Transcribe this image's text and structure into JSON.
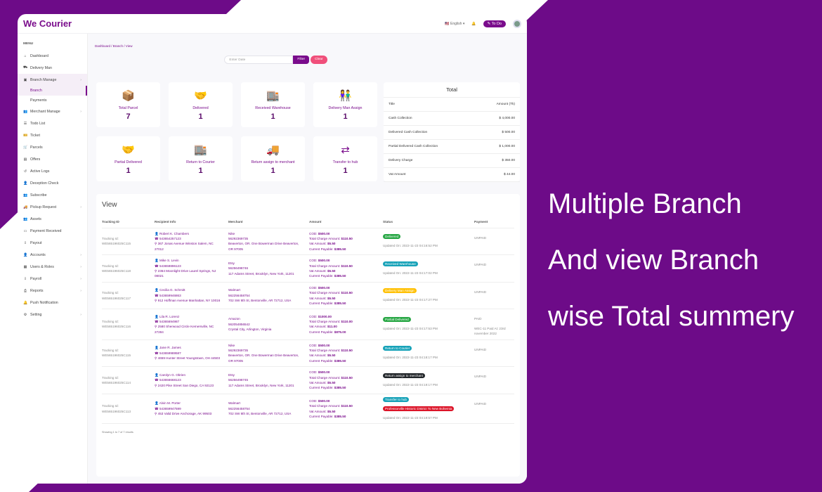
{
  "brand": {
    "name": "We Courier",
    "primary": "#7a0c8c",
    "background": "#6d0b88"
  },
  "header": {
    "language": "English",
    "todo_label": "To Do"
  },
  "sidebar": {
    "menu_label": "MENU",
    "items": [
      {
        "label": "Dashboard",
        "icon": "home-icon"
      },
      {
        "label": "Delivery Man",
        "icon": "motorcycle-icon"
      },
      {
        "label": "Branch Manage",
        "icon": "briefcase-icon",
        "chevron": true,
        "children": [
          "Branch",
          "Payments"
        ]
      },
      {
        "label": "Merchant Manage",
        "icon": "users-icon",
        "chevron": true
      },
      {
        "label": "Todo List",
        "icon": "list-icon"
      },
      {
        "label": "Ticket",
        "icon": "ticket-icon"
      },
      {
        "label": "Parcels",
        "icon": "cart-icon"
      },
      {
        "label": "Offers",
        "icon": "offer-icon"
      },
      {
        "label": "Active Logs",
        "icon": "history-icon"
      },
      {
        "label": "Deception Check",
        "icon": "user-check-icon"
      },
      {
        "label": "Subscribe",
        "icon": "users-icon"
      },
      {
        "label": "Pickup Request",
        "icon": "truck-icon",
        "chevron": true
      },
      {
        "label": "Assets",
        "icon": "users-icon"
      },
      {
        "label": "Payment Received",
        "icon": "wallet-icon"
      },
      {
        "label": "Payout",
        "icon": "payout-icon"
      },
      {
        "label": "Accounts",
        "icon": "user-icon",
        "chevron": true
      },
      {
        "label": "Users & Roles",
        "icon": "grid-icon",
        "chevron": true
      },
      {
        "label": "Payroll",
        "icon": "payroll-icon",
        "chevron": true
      },
      {
        "label": "Reports",
        "icon": "print-icon",
        "chevron": true
      },
      {
        "label": "Push Notification",
        "icon": "bell-icon"
      },
      {
        "label": "Setting",
        "icon": "gear-icon",
        "chevron": true
      }
    ]
  },
  "breadcrumb": "Dashboard / Branch / View",
  "filter": {
    "placeholder": "Enter Date",
    "filter_label": "Filter",
    "clear_label": "Clear"
  },
  "stats": [
    {
      "label": "Total Parcel",
      "value": "7",
      "icon": "box-icon"
    },
    {
      "label": "Delivered",
      "value": "1",
      "icon": "handshake-icon"
    },
    {
      "label": "Received Warehouse",
      "value": "1",
      "icon": "warehouse-icon"
    },
    {
      "label": "Delivery Man Assign",
      "value": "1",
      "icon": "people-carry-icon"
    },
    {
      "label": "Partial Delivered",
      "value": "1",
      "icon": "handshake-icon"
    },
    {
      "label": "Return to Courier",
      "value": "1",
      "icon": "warehouse-icon"
    },
    {
      "label": "Return assign to merchant",
      "value": "1",
      "icon": "truck-icon"
    },
    {
      "label": "Transfer to hub",
      "value": "1",
      "icon": "exchange-icon"
    }
  ],
  "total": {
    "title": "Total",
    "head": [
      "Title",
      "Amount (Tk)"
    ],
    "rows": [
      [
        "Cash Collection",
        "$ 4,000.00"
      ],
      [
        "Delivered Cash Collection",
        "$ 500.00"
      ],
      [
        "Partial Delivered Cash Collection",
        "$ 1,000.00"
      ],
      [
        "Delivery Charge",
        "$ 350.00"
      ],
      [
        "Vat Amount",
        "$ 44.00"
      ]
    ]
  },
  "view": {
    "title": "View",
    "columns": [
      "Tracking ID",
      "Recipient Info",
      "Merchant",
      "Amount",
      "Status",
      "Payment"
    ],
    "rows": [
      {
        "tracking": "Tracking Id: WE565196025C115",
        "name": "Robert K. Chambers",
        "phone": "543654257123",
        "address": "367 Jonas Avenue Winston Salem, NC 27012",
        "merchant": "Nike",
        "mphone": "56292369735",
        "maddress": "Beaverton, OR. One Bowerman Drive Beaverton, OR 97005",
        "cod": "$500.00",
        "charge": "$110.50",
        "vat": "$5.50",
        "payable": "$385.50",
        "status": [
          {
            "text": "Delivered",
            "color": "#28a745"
          }
        ],
        "updated": "Updated On: 2022-11-23 04:16:52 PM",
        "payment": "UNPAID"
      },
      {
        "tracking": "Tracking Id: WE565196025C118",
        "name": "Mike S. Levin",
        "phone": "543659896123",
        "address": "2364 Moonlight Drive Laurel Springs, NJ 08021",
        "merchant": "Etsy",
        "mphone": "56256498746",
        "maddress": "117 Adams Street, Brooklyn, New York, 11201",
        "cod": "$500.00",
        "charge": "$110.50",
        "vat": "$5.50",
        "payable": "$385.50",
        "status": [
          {
            "text": "Received Warehouse",
            "color": "#17a2b8"
          }
        ],
        "updated": "Updated On: 2022-11-23 04:17:02 PM",
        "payment": "UNPAID"
      },
      {
        "tracking": "Tracking Id: WE565196025C117",
        "name": "Cecilia G. Schmitt",
        "phone": "543659946863",
        "address": "912 Hoffman Avenue Manhattan, NY 10016",
        "merchant": "Walmart",
        "mphone": "562256458754",
        "maddress": "702 SW 8th St, Bentonville, AR 72712, USA",
        "cod": "$500.00",
        "charge": "$110.50",
        "vat": "$5.50",
        "payable": "$385.50",
        "status": [
          {
            "text": "Delivery Man Assign",
            "color": "#ffc107"
          }
        ],
        "updated": "Updated On: 2022-11-23 04:17:27 PM",
        "payment": "UNPAID"
      },
      {
        "tracking": "Tracking Id: WE565196025C116",
        "name": "Lila R. Lorenz",
        "phone": "54365694987",
        "address": "2580 Sherwood Circle Kernersville, NC 27284",
        "merchant": "Amazon",
        "mphone": "562054856542",
        "maddress": "Crystal City, Arlington, Virginia",
        "cod": "$1000.00",
        "charge": "$110.00",
        "vat": "$11.00",
        "payable": "$875.00",
        "status": [
          {
            "text": "Partial Delivered",
            "color": "#28a745"
          }
        ],
        "updated": "Updated On: 2022-11-23 04:17:53 PM",
        "payment": "PAID",
        "payment_note": "WEC-11 Paid At: 23rd november 2022"
      },
      {
        "tracking": "Tracking Id: WE565196025C115",
        "name": "Jane R. James",
        "phone": "543659989587",
        "address": "4659 Hunter Street Youngstown, OH 44503",
        "merchant": "Nike",
        "mphone": "56292369735",
        "maddress": "Beaverton, OR. One Bowerman Drive Beaverton, OR 97005",
        "cod": "$500.00",
        "charge": "$110.50",
        "vat": "$5.50",
        "payable": "$385.50",
        "status": [
          {
            "text": "Return to Courier",
            "color": "#17a2b8"
          }
        ],
        "updated": "Updated On: 2022-11-23 04:18:17 PM",
        "payment": "UNPAID"
      },
      {
        "tracking": "Tracking Id: WE565196025C114",
        "name": "Carolyn G. Obrien",
        "phone": "543656668123",
        "address": "2420 Pike Street San Diego, CA 92123",
        "merchant": "Etsy",
        "mphone": "56256498745",
        "maddress": "117 Adams Street, Brooklyn, New York, 11201",
        "cod": "$500.00",
        "charge": "$110.50",
        "vat": "$5.50",
        "payable": "$385.50",
        "status": [
          {
            "text": "Return assign to merchant",
            "color": "#23272b"
          }
        ],
        "updated": "Updated On: 2022-11-23 04:19:17 PM",
        "payment": "UNPAID"
      },
      {
        "tracking": "Tracking Id: WE565196025C113",
        "name": "Alvin M. Porter",
        "phone": "543659947599",
        "address": "453 Valid Drive Anchorage, AK 99503",
        "merchant": "Walmart",
        "mphone": "562256458754",
        "maddress": "702 SW 8th St, Bentonville, AR 72712, USA",
        "cod": "$500.00",
        "charge": "$110.50",
        "vat": "$5.50",
        "payable": "$385.50",
        "status": [
          {
            "text": "Transfer to hub",
            "color": "#17a2b8"
          },
          {
            "text": "Professorville Historic District To New Bohemia",
            "color": "#dc1428"
          }
        ],
        "updated": "Updated On: 2022-11-23 04:19:57 PM",
        "payment": "UNPAID"
      }
    ],
    "amount_labels": {
      "cod": "COD:",
      "charge": "Total Charge Amount:",
      "vat": "Vat Amount:",
      "payable": "Current Payable:"
    },
    "showing": "Showing 1 to 7 of 7 results"
  },
  "promo": [
    "Multiple Branch",
    "And view Branch",
    "wise Total summery"
  ]
}
